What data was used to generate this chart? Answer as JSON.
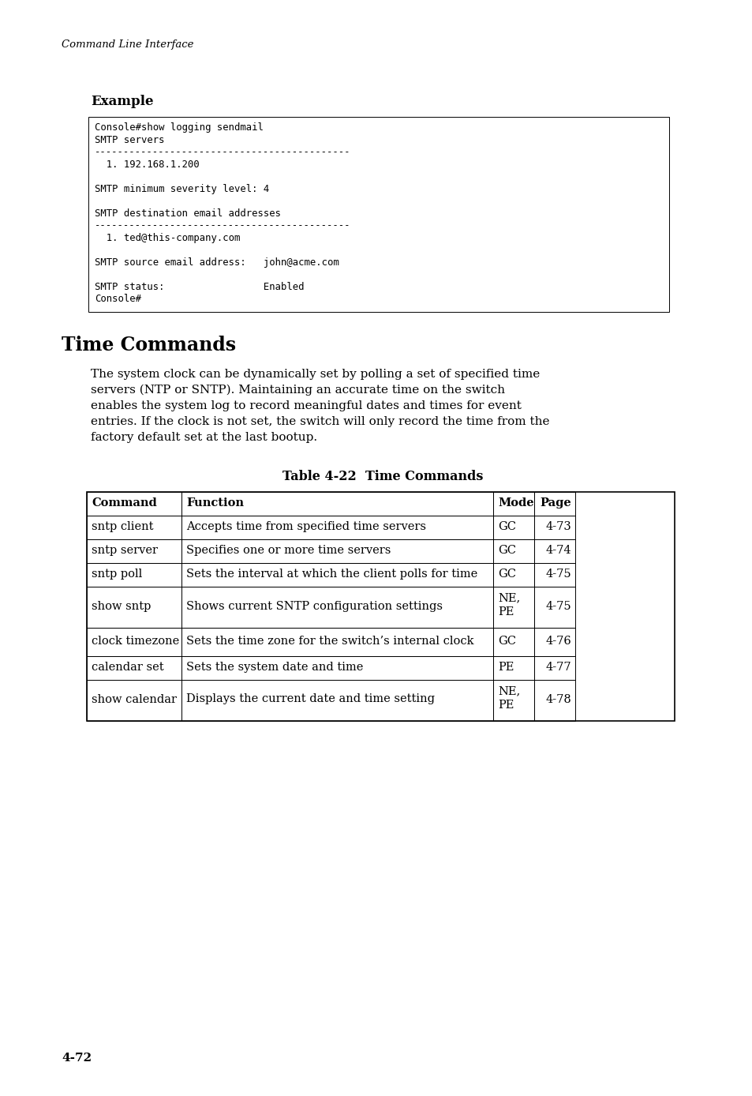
{
  "page_header": "Command Line Interface",
  "section_title": "Time Commands",
  "body_text_lines": [
    "The system clock can be dynamically set by polling a set of specified time",
    "servers (NTP or SNTP). Maintaining an accurate time on the switch",
    "enables the system log to record meaningful dates and times for event",
    "entries. If the clock is not set, the switch will only record the time from the",
    "factory default set at the last bootup."
  ],
  "example_label": "Example",
  "code_lines": [
    "Console#show logging sendmail",
    "SMTP servers",
    "--------------------------------------------",
    "  1. 192.168.1.200",
    "",
    "SMTP minimum severity level: 4",
    "",
    "SMTP destination email addresses",
    "--------------------------------------------",
    "  1. ted@this-company.com",
    "",
    "SMTP source email address:   john@acme.com",
    "",
    "SMTP status:                 Enabled",
    "Console#"
  ],
  "table_title": "Table 4-22  Time Commands",
  "table_headers": [
    "Command",
    "Function",
    "Mode",
    "Page"
  ],
  "table_rows": [
    [
      "sntp client",
      "Accepts time from specified time servers",
      "GC",
      "4-73"
    ],
    [
      "sntp server",
      "Specifies one or more time servers",
      "GC",
      "4-74"
    ],
    [
      "sntp poll",
      "Sets the interval at which the client polls for time",
      "GC",
      "4-75"
    ],
    [
      "show sntp",
      "Shows current SNTP configuration settings",
      "NE,\nPE",
      "4-75"
    ],
    [
      "clock timezone",
      "Sets the time zone for the switch’s internal clock",
      "GC",
      "4-76"
    ],
    [
      "calendar set",
      "Sets the system date and time",
      "PE",
      "4-77"
    ],
    [
      "show calendar",
      "Displays the current date and time setting",
      "NE,\nPE",
      "4-78"
    ]
  ],
  "page_number": "4-72",
  "background_color": "#ffffff",
  "text_color": "#000000",
  "table_border_color": "#000000"
}
